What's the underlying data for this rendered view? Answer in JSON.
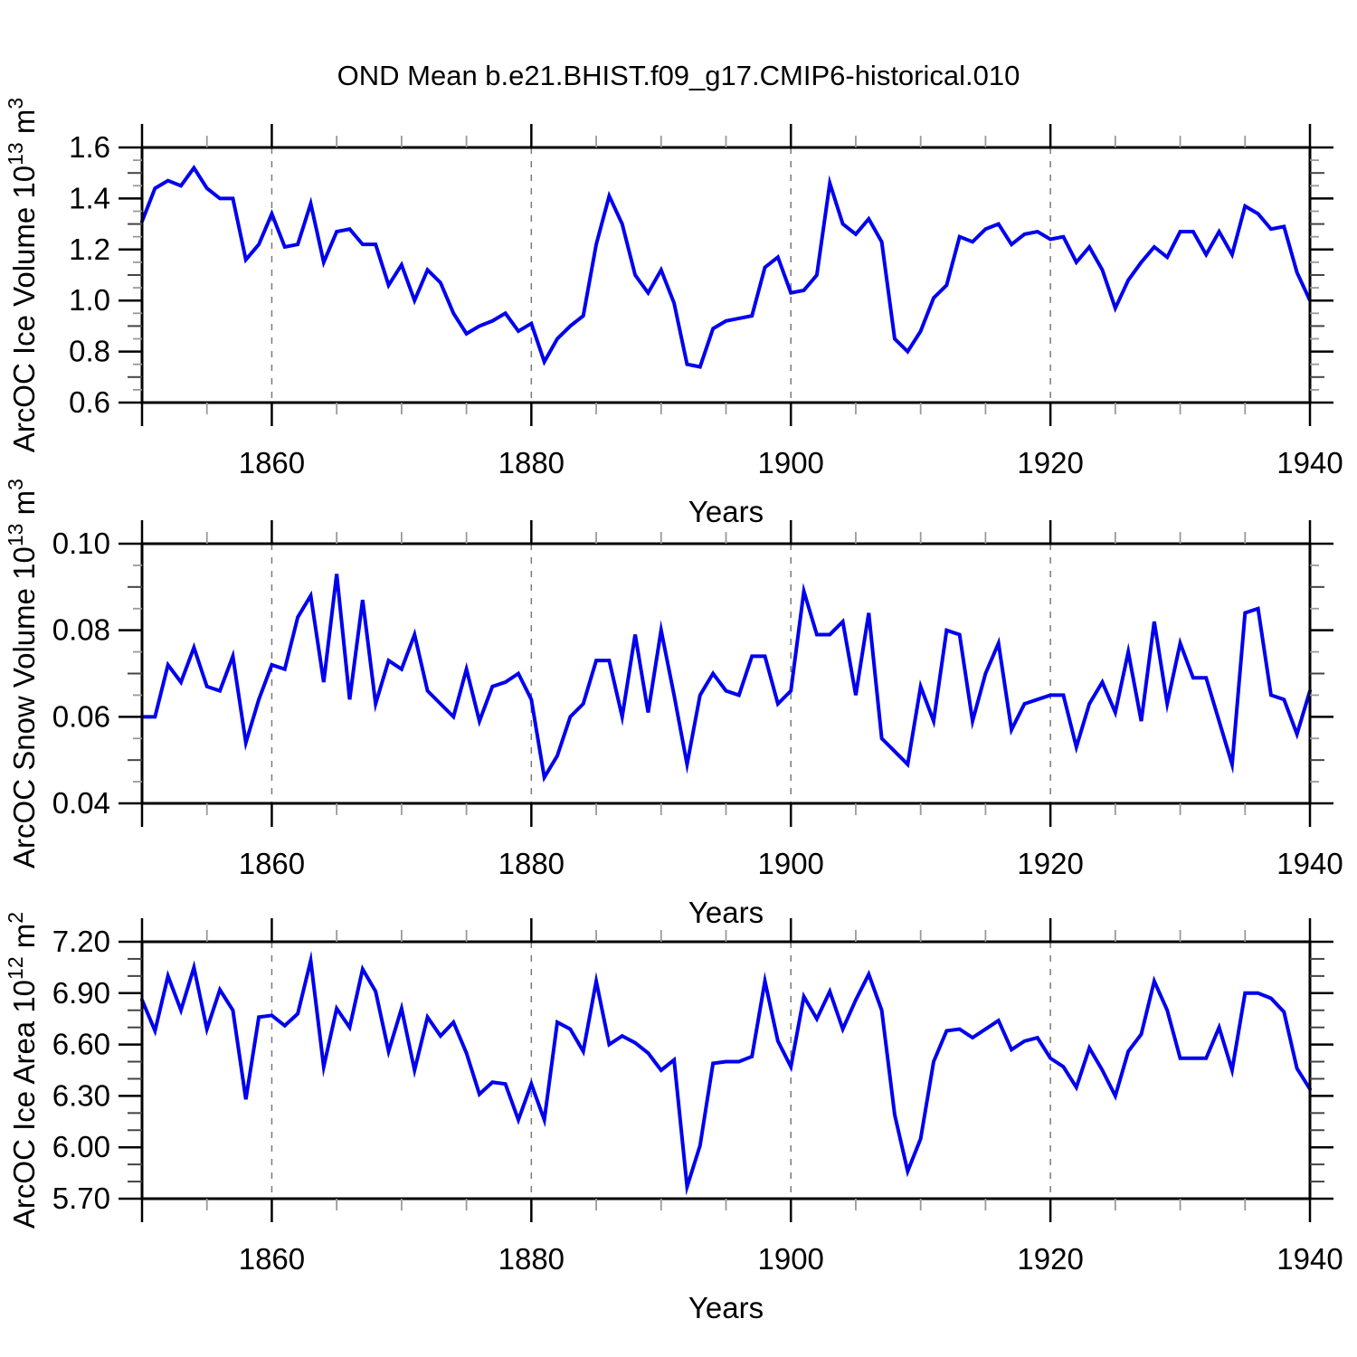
{
  "title": "OND Mean b.e21.BHIST.f09_g17.CMIP6-historical.010",
  "colors": {
    "line": "#0000ee",
    "axis": "#000000",
    "grid": "#7a7a7a",
    "tick_mid": "#444444",
    "tick_minor": "#999999",
    "text": "#000000",
    "background": "#ffffff"
  },
  "x_axis": {
    "start": 1850,
    "end": 1940,
    "labeled_ticks": [
      1860,
      1880,
      1900,
      1920,
      1940
    ],
    "edge_ticks": [
      1850
    ],
    "minor_step": 5,
    "gridlines": [
      1860,
      1880,
      1900,
      1920
    ]
  },
  "chart_data": [
    {
      "type": "line",
      "name": "ice-volume",
      "ylabel_text": "ArcOC Ice Volume 10^13 m^3",
      "ylabel_parts": [
        {
          "t": "ArcOC Ice Volume 10"
        },
        {
          "t": "13",
          "sup": true
        },
        {
          "t": " m"
        },
        {
          "t": "3",
          "sup": true
        }
      ],
      "xlabel": "Years",
      "ylim": [
        0.6,
        1.6
      ],
      "yticks": [
        {
          "v": 1.6,
          "label": "1.6"
        },
        {
          "v": 1.4,
          "label": "1.4"
        },
        {
          "v": 1.2,
          "label": "1.2"
        },
        {
          "v": 1.0,
          "label": "1.0"
        },
        {
          "v": 0.8,
          "label": "0.8"
        },
        {
          "v": 0.6,
          "label": "0.6"
        }
      ],
      "y_minor_step": 0.05,
      "y_mid_step": 0.1,
      "x_start": 1850,
      "x_step": 1,
      "values": [
        1.31,
        1.44,
        1.47,
        1.45,
        1.52,
        1.44,
        1.4,
        1.4,
        1.16,
        1.22,
        1.34,
        1.21,
        1.22,
        1.38,
        1.15,
        1.27,
        1.28,
        1.22,
        1.22,
        1.06,
        1.14,
        1.0,
        1.12,
        1.07,
        0.95,
        0.87,
        0.9,
        0.92,
        0.95,
        0.88,
        0.91,
        0.76,
        0.85,
        0.9,
        0.94,
        1.22,
        1.41,
        1.3,
        1.1,
        1.03,
        1.12,
        0.99,
        0.75,
        0.74,
        0.89,
        0.92,
        0.93,
        0.94,
        1.13,
        1.17,
        1.03,
        1.04,
        1.1,
        1.46,
        1.3,
        1.26,
        1.32,
        1.23,
        0.85,
        0.8,
        0.88,
        1.01,
        1.06,
        1.25,
        1.23,
        1.28,
        1.3,
        1.22,
        1.26,
        1.27,
        1.24,
        1.25,
        1.15,
        1.21,
        1.12,
        0.97,
        1.08,
        1.15,
        1.21,
        1.17,
        1.27,
        1.27,
        1.18,
        1.27,
        1.18,
        1.37,
        1.34,
        1.28,
        1.29,
        1.11,
        1.0
      ]
    },
    {
      "type": "line",
      "name": "snow-volume",
      "ylabel_text": "ArcOC Snow Volume 10^13 m^3",
      "ylabel_parts": [
        {
          "t": "ArcOC Snow Volume 10"
        },
        {
          "t": "13",
          "sup": true
        },
        {
          "t": " m"
        },
        {
          "t": "3",
          "sup": true
        }
      ],
      "xlabel": "Years",
      "ylim": [
        0.04,
        0.1
      ],
      "yticks": [
        {
          "v": 0.1,
          "label": "0.10"
        },
        {
          "v": 0.08,
          "label": "0.08"
        },
        {
          "v": 0.06,
          "label": "0.06"
        },
        {
          "v": 0.04,
          "label": "0.04"
        }
      ],
      "y_minor_step": 0.005,
      "y_mid_step": 0.01,
      "x_start": 1850,
      "x_step": 1,
      "values": [
        0.06,
        0.06,
        0.072,
        0.068,
        0.076,
        0.067,
        0.066,
        0.074,
        0.054,
        0.064,
        0.072,
        0.071,
        0.083,
        0.088,
        0.068,
        0.093,
        0.064,
        0.087,
        0.063,
        0.073,
        0.071,
        0.079,
        0.066,
        0.063,
        0.06,
        0.071,
        0.059,
        0.067,
        0.068,
        0.07,
        0.064,
        0.046,
        0.051,
        0.06,
        0.063,
        0.073,
        0.073,
        0.06,
        0.079,
        0.061,
        0.08,
        0.065,
        0.049,
        0.065,
        0.07,
        0.066,
        0.065,
        0.074,
        0.074,
        0.063,
        0.066,
        0.089,
        0.079,
        0.079,
        0.082,
        0.065,
        0.084,
        0.055,
        0.052,
        0.049,
        0.067,
        0.059,
        0.08,
        0.079,
        0.059,
        0.07,
        0.077,
        0.057,
        0.063,
        0.064,
        0.065,
        0.065,
        0.053,
        0.063,
        0.068,
        0.061,
        0.075,
        0.059,
        0.082,
        0.063,
        0.077,
        0.069,
        0.069,
        0.059,
        0.049,
        0.084,
        0.085,
        0.065,
        0.064,
        0.056,
        0.066
      ]
    },
    {
      "type": "line",
      "name": "ice-area",
      "ylabel_text": "ArcOC Ice Area 10^12 m^2",
      "ylabel_parts": [
        {
          "t": "ArcOC Ice Area 10"
        },
        {
          "t": "12",
          "sup": true
        },
        {
          "t": " m"
        },
        {
          "t": "2",
          "sup": true
        }
      ],
      "xlabel": "Years",
      "ylim": [
        5.7,
        7.2
      ],
      "yticks": [
        {
          "v": 7.2,
          "label": "7.20"
        },
        {
          "v": 6.9,
          "label": "6.90"
        },
        {
          "v": 6.6,
          "label": "6.60"
        },
        {
          "v": 6.3,
          "label": "6.30"
        },
        {
          "v": 6.0,
          "label": "6.00"
        },
        {
          "v": 5.7,
          "label": "5.70"
        }
      ],
      "y_minor_step": 0.1,
      "y_mid_step": null,
      "x_start": 1850,
      "x_step": 1,
      "values": [
        6.86,
        6.68,
        7.0,
        6.8,
        7.05,
        6.69,
        6.92,
        6.8,
        6.28,
        6.76,
        6.77,
        6.71,
        6.78,
        7.09,
        6.47,
        6.81,
        6.7,
        7.04,
        6.91,
        6.56,
        6.81,
        6.45,
        6.76,
        6.65,
        6.73,
        6.55,
        6.31,
        6.38,
        6.37,
        6.16,
        6.37,
        6.16,
        6.73,
        6.69,
        6.56,
        6.97,
        6.6,
        6.65,
        6.61,
        6.55,
        6.45,
        6.51,
        5.77,
        6.01,
        6.49,
        6.5,
        6.5,
        6.53,
        6.97,
        6.62,
        6.47,
        6.88,
        6.75,
        6.91,
        6.69,
        6.86,
        7.01,
        6.8,
        6.19,
        5.86,
        6.05,
        6.5,
        6.68,
        6.69,
        6.64,
        6.69,
        6.74,
        6.57,
        6.62,
        6.64,
        6.52,
        6.47,
        6.35,
        6.58,
        6.45,
        6.3,
        6.56,
        6.66,
        6.97,
        6.8,
        6.52,
        6.52,
        6.52,
        6.7,
        6.45,
        6.9,
        6.9,
        6.87,
        6.79,
        6.46,
        6.34
      ]
    }
  ]
}
